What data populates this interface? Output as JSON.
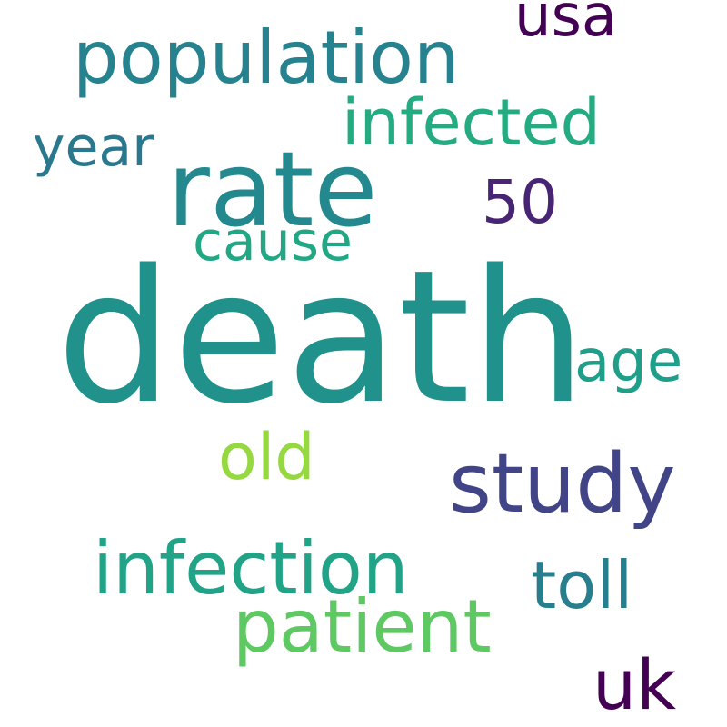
{
  "words": {
    "death": "death",
    "rate": "rate",
    "population": "population",
    "usa": "usa",
    "infected": "infected",
    "year": "year",
    "fifty": "50",
    "cause": "cause",
    "age": "age",
    "old": "old",
    "study": "study",
    "infection": "infection",
    "toll": "toll",
    "patient": "patient",
    "uk": "uk"
  },
  "colors": {
    "death": "#21918c",
    "rate": "#23898e",
    "population": "#26828e",
    "usa": "#440154",
    "infected": "#25ab82",
    "year": "#2a788e",
    "fifty": "#482475",
    "cause": "#22a785",
    "age": "#1f9e89",
    "old": "#95d840",
    "study": "#414487",
    "infection": "#20a386",
    "toll": "#277f8e",
    "patient": "#5ec962",
    "uk": "#440154"
  }
}
